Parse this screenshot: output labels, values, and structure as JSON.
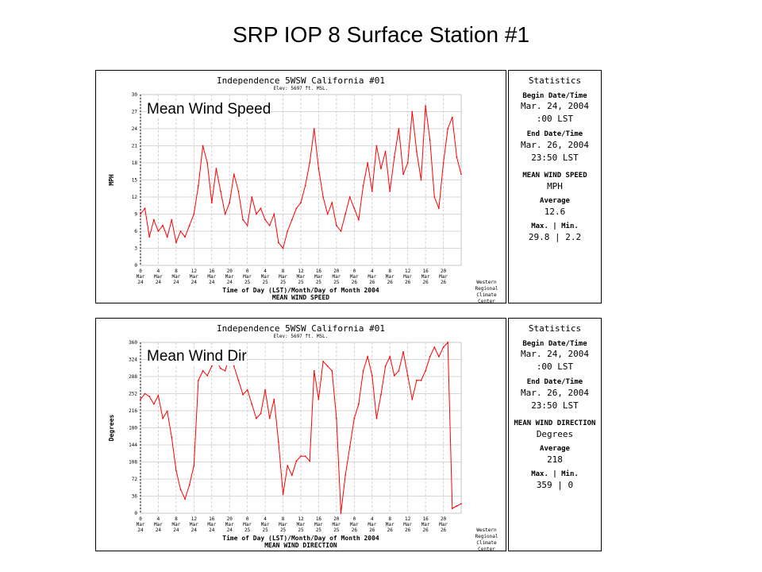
{
  "slide_title": "SRP IOP 8 Surface Station #1",
  "chart_data": [
    {
      "type": "line",
      "overlay_label": "Mean Wind Speed",
      "title": "Independence 5WSW  California #01",
      "subtitle": "Elev: 5697 ft. MSL.",
      "ylabel": "MPH",
      "xlabel": "Time of Day (LST)/Month/Day of Month 2004",
      "footer": "MEAN WIND SPEED",
      "credit": [
        "Western",
        "Regional",
        "Climate",
        "Center"
      ],
      "ylim": [
        0,
        30
      ],
      "yticks": [
        0,
        3,
        6,
        9,
        12,
        15,
        18,
        21,
        24,
        27,
        30
      ],
      "x_range_hours": [
        0,
        72
      ],
      "xticks": [
        {
          "h": 0,
          "time": "0",
          "mon": "Mar",
          "day": "24"
        },
        {
          "h": 4,
          "time": "4",
          "mon": "Mar",
          "day": "24"
        },
        {
          "h": 8,
          "time": "8",
          "mon": "Mar",
          "day": "24"
        },
        {
          "h": 12,
          "time": "12",
          "mon": "Mar",
          "day": "24"
        },
        {
          "h": 16,
          "time": "16",
          "mon": "Mar",
          "day": "24"
        },
        {
          "h": 20,
          "time": "20",
          "mon": "Mar",
          "day": "24"
        },
        {
          "h": 24,
          "time": "0",
          "mon": "Mar",
          "day": "25"
        },
        {
          "h": 28,
          "time": "4",
          "mon": "Mar",
          "day": "25"
        },
        {
          "h": 32,
          "time": "8",
          "mon": "Mar",
          "day": "25"
        },
        {
          "h": 36,
          "time": "12",
          "mon": "Mar",
          "day": "25"
        },
        {
          "h": 40,
          "time": "16",
          "mon": "Mar",
          "day": "25"
        },
        {
          "h": 44,
          "time": "20",
          "mon": "Mar",
          "day": "25"
        },
        {
          "h": 48,
          "time": "0",
          "mon": "Mar",
          "day": "26"
        },
        {
          "h": 52,
          "time": "4",
          "mon": "Mar",
          "day": "26"
        },
        {
          "h": 56,
          "time": "8",
          "mon": "Mar",
          "day": "26"
        },
        {
          "h": 60,
          "time": "12",
          "mon": "Mar",
          "day": "26"
        },
        {
          "h": 64,
          "time": "16",
          "mon": "Mar",
          "day": "26"
        },
        {
          "h": 68,
          "time": "20",
          "mon": "Mar",
          "day": "26"
        }
      ],
      "series_color": "#ff0000",
      "series": [
        {
          "name": "Mean Wind Speed",
          "x": [
            0,
            1,
            2,
            3,
            4,
            5,
            6,
            7,
            8,
            9,
            10,
            11,
            12,
            13,
            14,
            15,
            16,
            17,
            18,
            19,
            20,
            21,
            22,
            23,
            24,
            25,
            26,
            27,
            28,
            29,
            30,
            31,
            32,
            33,
            34,
            35,
            36,
            37,
            38,
            39,
            40,
            41,
            42,
            43,
            44,
            45,
            46,
            47,
            48,
            49,
            50,
            51,
            52,
            53,
            54,
            55,
            56,
            57,
            58,
            59,
            60,
            61,
            62,
            63,
            64,
            65,
            66,
            67,
            68,
            69,
            70,
            71,
            72
          ],
          "values": [
            9,
            10,
            5,
            8,
            6,
            7,
            5,
            8,
            4,
            6,
            5,
            7,
            9,
            14,
            21,
            18,
            11,
            17,
            13,
            9,
            11,
            16,
            13,
            8,
            7,
            12,
            9,
            10,
            8,
            7,
            9,
            4,
            3,
            6,
            8,
            10,
            11,
            14,
            18,
            24,
            17,
            12,
            9,
            11,
            7,
            6,
            9,
            12,
            10,
            8,
            14,
            18,
            13,
            21,
            17,
            20,
            13,
            19,
            24,
            16,
            18,
            27,
            20,
            15,
            28,
            22,
            12,
            10,
            18,
            24,
            26,
            19,
            16
          ]
        }
      ]
    },
    {
      "type": "line",
      "overlay_label": "Mean Wind Dir",
      "title": "Independence 5WSW  California #01",
      "subtitle": "Elev: 5697 ft. MSL.",
      "ylabel": "Degrees",
      "xlabel": "Time of Day (LST)/Month/Day of Month 2004",
      "footer": "MEAN WIND DIRECTION",
      "credit": [
        "Western",
        "Regional",
        "Climate",
        "Center"
      ],
      "ylim": [
        0,
        360
      ],
      "yticks": [
        0,
        36,
        72,
        108,
        144,
        180,
        216,
        252,
        288,
        324,
        360
      ],
      "x_range_hours": [
        0,
        72
      ],
      "xticks": [
        {
          "h": 0,
          "time": "0",
          "mon": "Mar",
          "day": "24"
        },
        {
          "h": 4,
          "time": "4",
          "mon": "Mar",
          "day": "24"
        },
        {
          "h": 8,
          "time": "8",
          "mon": "Mar",
          "day": "24"
        },
        {
          "h": 12,
          "time": "12",
          "mon": "Mar",
          "day": "24"
        },
        {
          "h": 16,
          "time": "16",
          "mon": "Mar",
          "day": "24"
        },
        {
          "h": 20,
          "time": "20",
          "mon": "Mar",
          "day": "24"
        },
        {
          "h": 24,
          "time": "0",
          "mon": "Mar",
          "day": "25"
        },
        {
          "h": 28,
          "time": "4",
          "mon": "Mar",
          "day": "25"
        },
        {
          "h": 32,
          "time": "8",
          "mon": "Mar",
          "day": "25"
        },
        {
          "h": 36,
          "time": "12",
          "mon": "Mar",
          "day": "25"
        },
        {
          "h": 40,
          "time": "16",
          "mon": "Mar",
          "day": "25"
        },
        {
          "h": 44,
          "time": "20",
          "mon": "Mar",
          "day": "25"
        },
        {
          "h": 48,
          "time": "0",
          "mon": "Mar",
          "day": "26"
        },
        {
          "h": 52,
          "time": "4",
          "mon": "Mar",
          "day": "26"
        },
        {
          "h": 56,
          "time": "8",
          "mon": "Mar",
          "day": "26"
        },
        {
          "h": 60,
          "time": "12",
          "mon": "Mar",
          "day": "26"
        },
        {
          "h": 64,
          "time": "16",
          "mon": "Mar",
          "day": "26"
        },
        {
          "h": 68,
          "time": "20",
          "mon": "Mar",
          "day": "26"
        }
      ],
      "series_color": "#ff0000",
      "series": [
        {
          "name": "Mean Wind Direction",
          "x": [
            0,
            1,
            2,
            3,
            4,
            5,
            6,
            7,
            8,
            9,
            10,
            11,
            12,
            13,
            14,
            15,
            16,
            17,
            18,
            19,
            20,
            21,
            22,
            23,
            24,
            25,
            26,
            27,
            28,
            29,
            30,
            31,
            32,
            33,
            34,
            35,
            36,
            37,
            38,
            39,
            40,
            41,
            42,
            43,
            44,
            45,
            46,
            47,
            48,
            49,
            50,
            51,
            52,
            53,
            54,
            55,
            56,
            57,
            58,
            59,
            60,
            61,
            62,
            63,
            64,
            65,
            66,
            67,
            68,
            69,
            70,
            71,
            72
          ],
          "values": [
            240,
            252,
            246,
            230,
            248,
            200,
            215,
            160,
            90,
            50,
            30,
            60,
            100,
            280,
            300,
            290,
            310,
            320,
            305,
            300,
            330,
            310,
            280,
            250,
            260,
            230,
            200,
            210,
            260,
            200,
            240,
            150,
            40,
            100,
            80,
            110,
            120,
            120,
            110,
            300,
            240,
            320,
            310,
            300,
            200,
            0,
            80,
            140,
            200,
            230,
            300,
            330,
            290,
            200,
            250,
            310,
            330,
            290,
            300,
            340,
            290,
            240,
            280,
            280,
            300,
            330,
            350,
            330,
            350,
            360,
            10,
            15,
            20
          ]
        }
      ]
    }
  ],
  "stats": [
    {
      "title": "Statistics",
      "begin_label": "Begin Date/Time",
      "begin_date": "Mar. 24, 2004",
      "begin_time": ":00 LST",
      "end_label": "End Date/Time",
      "end_date": "Mar. 26, 2004",
      "end_time": "23:50 LST",
      "var_name": "MEAN WIND SPEED",
      "var_unit": "MPH",
      "avg_label": "Average",
      "avg_value": "12.6",
      "maxmin_label": "Max. | Min.",
      "maxmin_value": "29.8 | 2.2"
    },
    {
      "title": "Statistics",
      "begin_label": "Begin Date/Time",
      "begin_date": "Mar. 24, 2004",
      "begin_time": ":00 LST",
      "end_label": "End Date/Time",
      "end_date": "Mar. 26, 2004",
      "end_time": "23:50 LST",
      "var_name": "MEAN WIND DIRECTION",
      "var_unit": "Degrees",
      "avg_label": "Average",
      "avg_value": "218",
      "maxmin_label": "Max. | Min.",
      "maxmin_value": "359 | 0"
    }
  ]
}
